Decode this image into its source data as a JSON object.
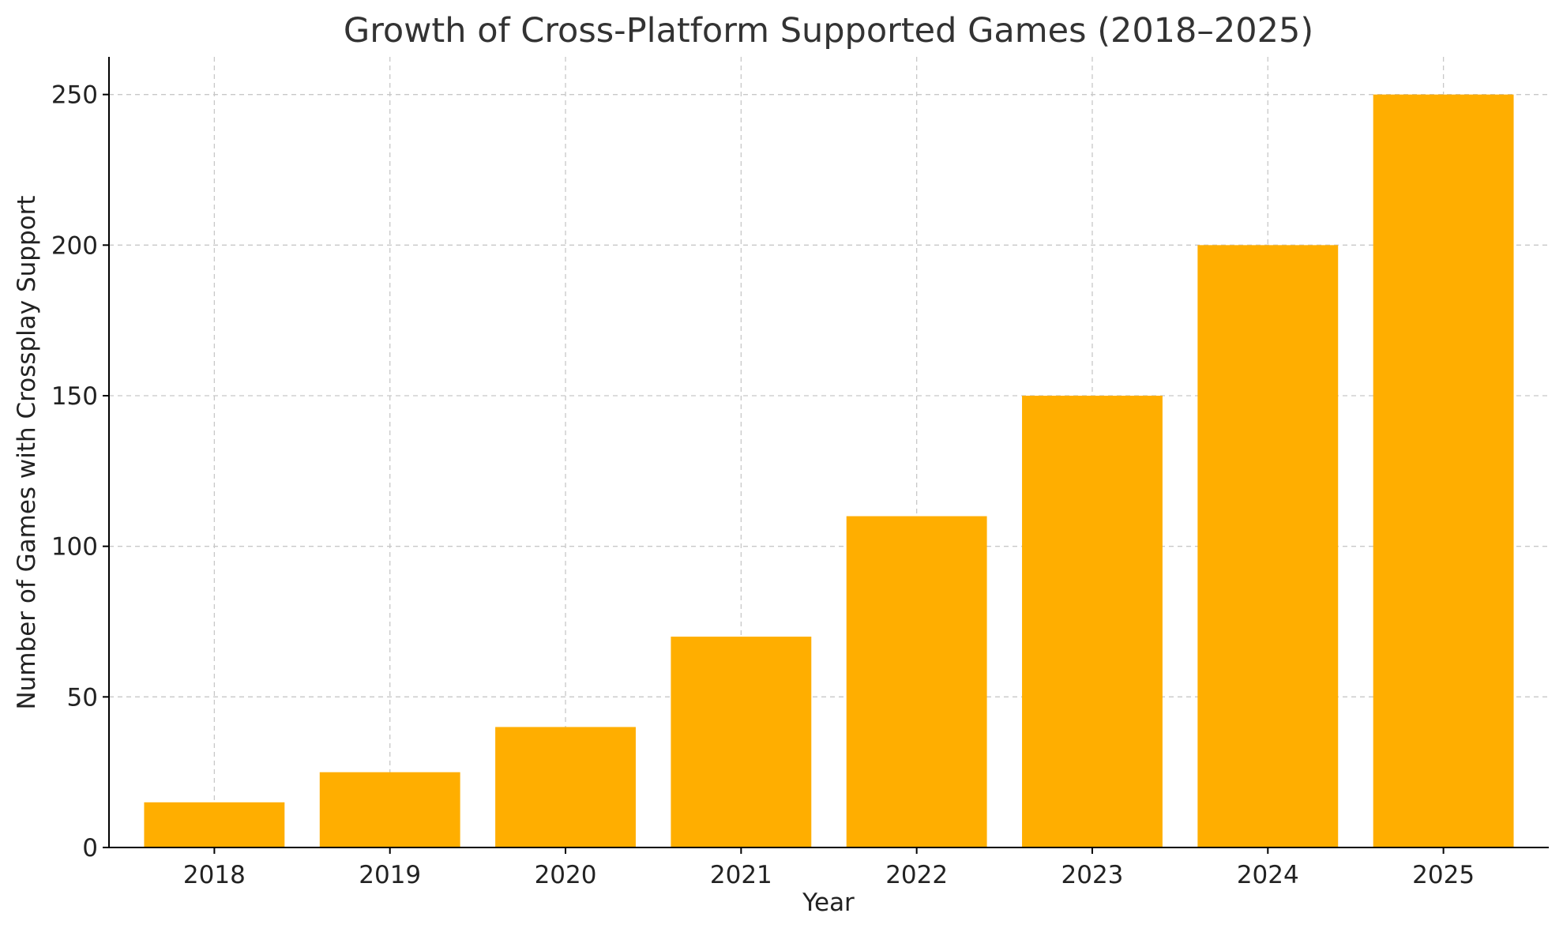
{
  "chart_data": {
    "type": "bar",
    "title": "Growth of Cross-Platform Supported Games (2018–2025)",
    "xlabel": "Year",
    "ylabel": "Number of Games with Crossplay Support",
    "categories": [
      "2018",
      "2019",
      "2020",
      "2021",
      "2022",
      "2023",
      "2024",
      "2025"
    ],
    "values": [
      15,
      25,
      40,
      70,
      110,
      150,
      200,
      250
    ],
    "ylim": [
      0,
      262.5
    ],
    "yticks": [
      0,
      50,
      100,
      150,
      200,
      250
    ],
    "grid": true,
    "bar_color": "#ffae00",
    "grid_color": "#c8c8c8"
  }
}
